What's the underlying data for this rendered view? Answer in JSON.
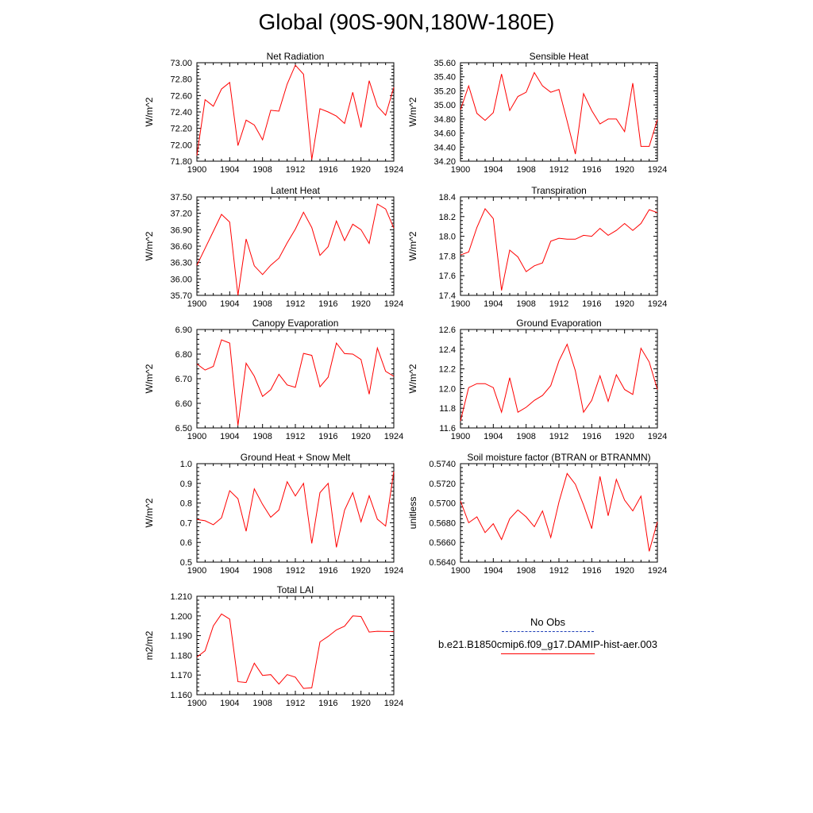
{
  "title": "Global (90S-90N,180W-180E)",
  "legend": {
    "obs_label": "No Obs",
    "model_label": "b.e21.B1850cmip6.f09_g17.DAMIP-hist-aer.003",
    "obs_color": "#1f3fb8",
    "model_color": "#ff0000"
  },
  "chart_data": [
    {
      "type": "line",
      "title": "Net Radiation",
      "ylabel": "W/m^2",
      "xlim": [
        1900,
        1924
      ],
      "ylim": [
        71.8,
        73.0
      ],
      "xticks": [
        1900,
        1904,
        1908,
        1912,
        1916,
        1920,
        1924
      ],
      "yticks": [
        71.8,
        72.0,
        72.2,
        72.4,
        72.6,
        72.8,
        73.0
      ],
      "ydec": 2,
      "x": [
        1900,
        1901,
        1902,
        1903,
        1904,
        1905,
        1906,
        1907,
        1908,
        1909,
        1910,
        1911,
        1912,
        1913,
        1914,
        1915,
        1916,
        1917,
        1918,
        1919,
        1920,
        1921,
        1922,
        1923,
        1924
      ],
      "series": [
        {
          "values": [
            71.87,
            72.55,
            72.47,
            72.68,
            72.76,
            71.99,
            72.3,
            72.24,
            72.06,
            72.42,
            72.41,
            72.74,
            72.97,
            72.86,
            71.82,
            72.44,
            72.4,
            72.35,
            72.26,
            72.64,
            72.21,
            72.78,
            72.47,
            72.36,
            72.7
          ]
        }
      ]
    },
    {
      "type": "line",
      "title": "Sensible Heat",
      "ylabel": "W/m^2",
      "xlim": [
        1900,
        1924
      ],
      "ylim": [
        34.2,
        35.6
      ],
      "xticks": [
        1900,
        1904,
        1908,
        1912,
        1916,
        1920,
        1924
      ],
      "yticks": [
        34.2,
        34.4,
        34.6,
        34.8,
        35.0,
        35.2,
        35.4,
        35.6
      ],
      "ydec": 2,
      "x": [
        1900,
        1901,
        1902,
        1903,
        1904,
        1905,
        1906,
        1907,
        1908,
        1909,
        1910,
        1911,
        1912,
        1913,
        1914,
        1915,
        1916,
        1917,
        1918,
        1919,
        1920,
        1921,
        1922,
        1923,
        1924
      ],
      "series": [
        {
          "values": [
            34.93,
            35.27,
            34.88,
            34.78,
            34.89,
            35.44,
            34.92,
            35.12,
            35.18,
            35.46,
            35.27,
            35.18,
            35.22,
            34.77,
            34.3,
            35.16,
            34.92,
            34.73,
            34.8,
            34.8,
            34.62,
            35.31,
            34.41,
            34.41,
            34.79
          ]
        }
      ]
    },
    {
      "type": "line",
      "title": "Latent Heat",
      "ylabel": "W/m^2",
      "xlim": [
        1900,
        1924
      ],
      "ylim": [
        35.7,
        37.5
      ],
      "xticks": [
        1900,
        1904,
        1908,
        1912,
        1916,
        1920,
        1924
      ],
      "yticks": [
        35.7,
        36.0,
        36.3,
        36.6,
        36.9,
        37.2,
        37.5
      ],
      "ydec": 2,
      "x": [
        1900,
        1901,
        1902,
        1903,
        1904,
        1905,
        1906,
        1907,
        1908,
        1909,
        1910,
        1911,
        1912,
        1913,
        1914,
        1915,
        1916,
        1917,
        1918,
        1919,
        1920,
        1921,
        1922,
        1923,
        1924
      ],
      "series": [
        {
          "values": [
            36.25,
            36.56,
            36.87,
            37.18,
            37.04,
            35.7,
            36.73,
            36.24,
            36.08,
            36.25,
            36.38,
            36.66,
            36.91,
            37.22,
            36.94,
            36.43,
            36.59,
            37.06,
            36.7,
            37.0,
            36.9,
            36.65,
            37.37,
            37.28,
            36.93
          ]
        }
      ]
    },
    {
      "type": "line",
      "title": "Transpiration",
      "ylabel": "W/m^2",
      "xlim": [
        1900,
        1924
      ],
      "ylim": [
        17.4,
        18.4
      ],
      "xticks": [
        1900,
        1904,
        1908,
        1912,
        1916,
        1920,
        1924
      ],
      "yticks": [
        17.4,
        17.6,
        17.8,
        18.0,
        18.2,
        18.4
      ],
      "ydec": 1,
      "x": [
        1900,
        1901,
        1902,
        1903,
        1904,
        1905,
        1906,
        1907,
        1908,
        1909,
        1910,
        1911,
        1912,
        1913,
        1914,
        1915,
        1916,
        1917,
        1918,
        1919,
        1920,
        1921,
        1922,
        1923,
        1924
      ],
      "series": [
        {
          "values": [
            17.81,
            17.84,
            18.09,
            18.28,
            18.18,
            17.45,
            17.86,
            17.79,
            17.64,
            17.7,
            17.73,
            17.95,
            17.98,
            17.97,
            17.97,
            18.01,
            18.0,
            18.08,
            18.01,
            18.06,
            18.13,
            18.06,
            18.13,
            18.27,
            18.24
          ]
        }
      ]
    },
    {
      "type": "line",
      "title": "Canopy Evaporation",
      "ylabel": "W/m^2",
      "xlim": [
        1900,
        1924
      ],
      "ylim": [
        6.5,
        6.9
      ],
      "xticks": [
        1900,
        1904,
        1908,
        1912,
        1916,
        1920,
        1924
      ],
      "yticks": [
        6.5,
        6.6,
        6.7,
        6.8,
        6.9
      ],
      "ydec": 2,
      "x": [
        1900,
        1901,
        1902,
        1903,
        1904,
        1905,
        1906,
        1907,
        1908,
        1909,
        1910,
        1911,
        1912,
        1913,
        1914,
        1915,
        1916,
        1917,
        1918,
        1919,
        1920,
        1921,
        1922,
        1923,
        1924
      ],
      "series": [
        {
          "values": [
            6.76,
            6.735,
            6.75,
            6.858,
            6.845,
            6.51,
            6.763,
            6.71,
            6.628,
            6.655,
            6.718,
            6.675,
            6.665,
            6.803,
            6.795,
            6.667,
            6.706,
            6.845,
            6.802,
            6.8,
            6.778,
            6.637,
            6.825,
            6.73,
            6.71
          ]
        }
      ]
    },
    {
      "type": "line",
      "title": "Ground Evaporation",
      "ylabel": "W/m^2",
      "xlim": [
        1900,
        1924
      ],
      "ylim": [
        11.6,
        12.6
      ],
      "xticks": [
        1900,
        1904,
        1908,
        1912,
        1916,
        1920,
        1924
      ],
      "yticks": [
        11.6,
        11.8,
        12.0,
        12.2,
        12.4,
        12.6
      ],
      "ydec": 1,
      "x": [
        1900,
        1901,
        1902,
        1903,
        1904,
        1905,
        1906,
        1907,
        1908,
        1909,
        1910,
        1911,
        1912,
        1913,
        1914,
        1915,
        1916,
        1917,
        1918,
        1919,
        1920,
        1921,
        1922,
        1923,
        1924
      ],
      "series": [
        {
          "values": [
            11.67,
            12.01,
            12.05,
            12.05,
            12.01,
            11.76,
            12.11,
            11.76,
            11.81,
            11.88,
            11.93,
            12.03,
            12.28,
            12.45,
            12.18,
            11.76,
            11.88,
            12.13,
            11.87,
            12.14,
            11.99,
            11.94,
            12.41,
            12.27,
            11.99
          ]
        }
      ]
    },
    {
      "type": "line",
      "title": "Ground Heat + Snow Melt",
      "ylabel": "W/m^2",
      "xlim": [
        1900,
        1924
      ],
      "ylim": [
        0.5,
        1.0
      ],
      "xticks": [
        1900,
        1904,
        1908,
        1912,
        1916,
        1920,
        1924
      ],
      "yticks": [
        0.5,
        0.6,
        0.7,
        0.8,
        0.9,
        1.0
      ],
      "ydec": 1,
      "x": [
        1900,
        1901,
        1902,
        1903,
        1904,
        1905,
        1906,
        1907,
        1908,
        1909,
        1910,
        1911,
        1912,
        1913,
        1914,
        1915,
        1916,
        1917,
        1918,
        1919,
        1920,
        1921,
        1922,
        1923,
        1924
      ],
      "series": [
        {
          "values": [
            0.717,
            0.71,
            0.69,
            0.725,
            0.863,
            0.822,
            0.657,
            0.872,
            0.793,
            0.728,
            0.765,
            0.908,
            0.836,
            0.9,
            0.595,
            0.853,
            0.9,
            0.575,
            0.764,
            0.853,
            0.705,
            0.837,
            0.718,
            0.683,
            0.96
          ]
        }
      ]
    },
    {
      "type": "line",
      "title": "Soil moisture factor (BTRAN or BTRANMN)",
      "ylabel": "unitless",
      "xlim": [
        1900,
        1924
      ],
      "ylim": [
        0.564,
        0.574
      ],
      "xticks": [
        1900,
        1904,
        1908,
        1912,
        1916,
        1920,
        1924
      ],
      "yticks": [
        0.564,
        0.566,
        0.568,
        0.57,
        0.572,
        0.574
      ],
      "ydec": 4,
      "x": [
        1900,
        1901,
        1902,
        1903,
        1904,
        1905,
        1906,
        1907,
        1908,
        1909,
        1910,
        1911,
        1912,
        1913,
        1914,
        1915,
        1916,
        1917,
        1918,
        1919,
        1920,
        1921,
        1922,
        1923,
        1924
      ],
      "series": [
        {
          "values": [
            0.5702,
            0.568,
            0.5686,
            0.567,
            0.5679,
            0.5663,
            0.5684,
            0.5693,
            0.5686,
            0.5676,
            0.5692,
            0.5665,
            0.5701,
            0.573,
            0.5719,
            0.5698,
            0.5674,
            0.5727,
            0.5687,
            0.5724,
            0.5703,
            0.5692,
            0.5707,
            0.5651,
            0.5681
          ]
        }
      ]
    },
    {
      "type": "line",
      "title": "Total LAI",
      "ylabel": "m2/m2",
      "xlim": [
        1900,
        1924
      ],
      "ylim": [
        1.16,
        1.21
      ],
      "xticks": [
        1900,
        1904,
        1908,
        1912,
        1916,
        1920,
        1924
      ],
      "yticks": [
        1.16,
        1.17,
        1.18,
        1.19,
        1.2,
        1.21
      ],
      "ydec": 3,
      "x": [
        1900,
        1901,
        1902,
        1903,
        1904,
        1905,
        1906,
        1907,
        1908,
        1909,
        1910,
        1911,
        1912,
        1913,
        1914,
        1915,
        1916,
        1917,
        1918,
        1919,
        1920,
        1921,
        1922,
        1923,
        1924
      ],
      "series": [
        {
          "values": [
            1.1791,
            1.1823,
            1.1949,
            1.201,
            1.1984,
            1.1666,
            1.1662,
            1.176,
            1.1698,
            1.1702,
            1.1654,
            1.1702,
            1.1689,
            1.1632,
            1.1635,
            1.1868,
            1.1896,
            1.1929,
            1.1948,
            1.2,
            1.1997,
            1.1918,
            1.1922,
            1.1921,
            1.1921
          ]
        }
      ]
    }
  ]
}
